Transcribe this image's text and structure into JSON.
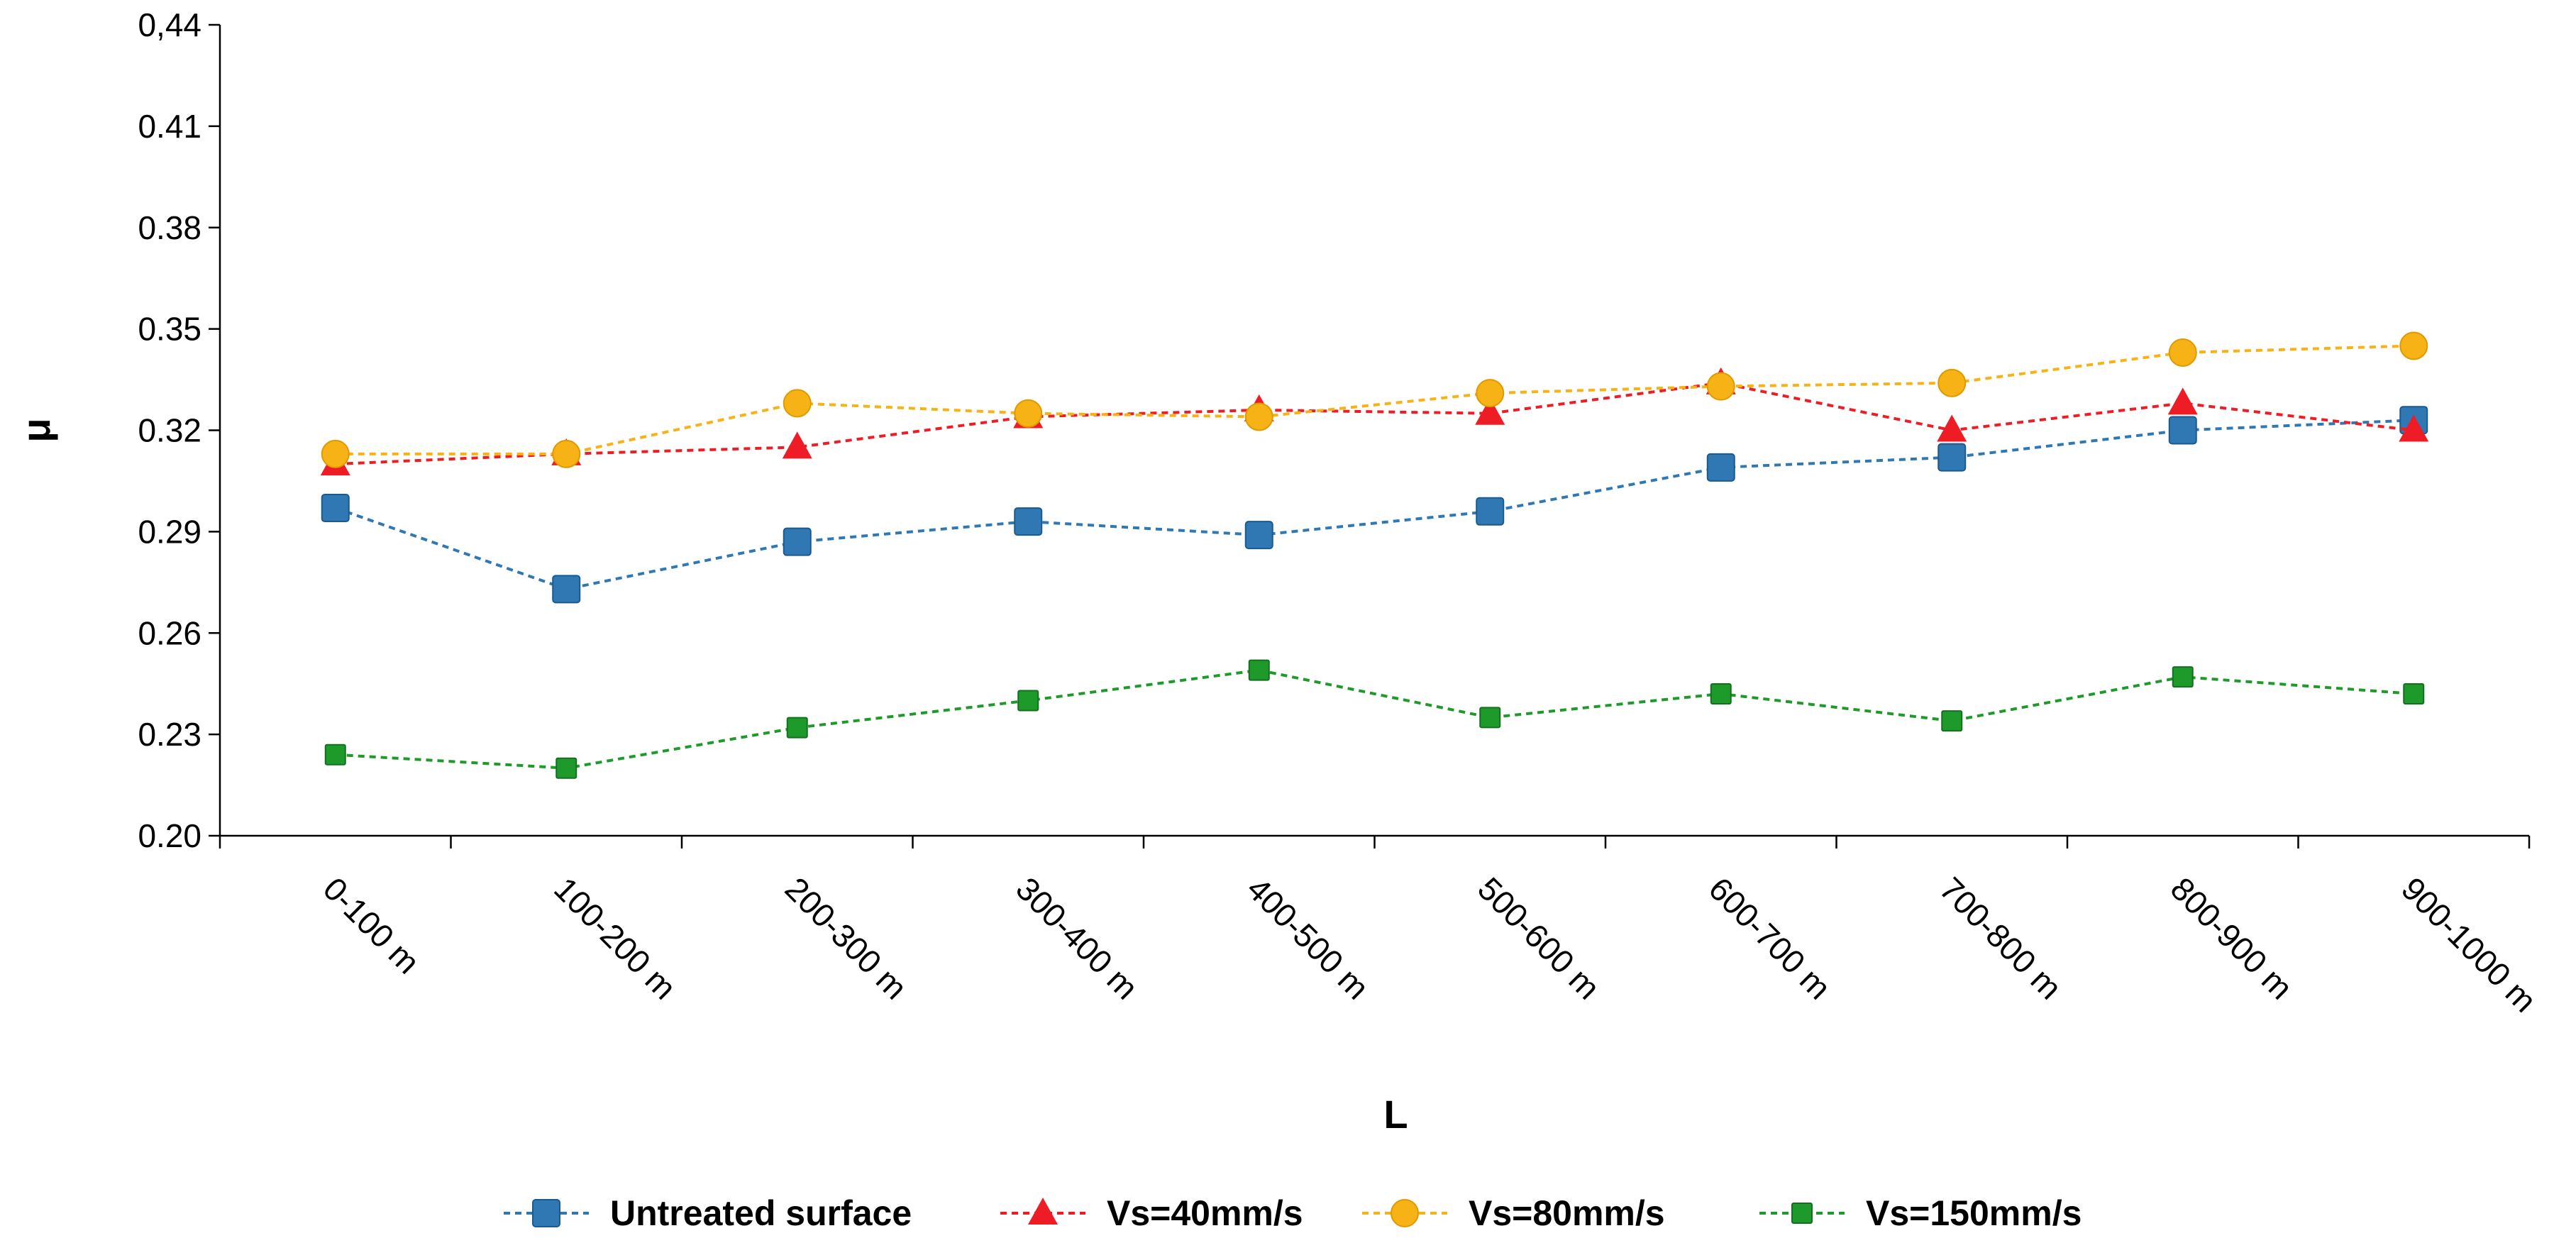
{
  "chart_data": {
    "type": "line",
    "title": "",
    "xlabel": "L",
    "ylabel": "μ",
    "ylim": [
      0.2,
      0.44
    ],
    "yticks": [
      "0.20",
      "0.23",
      "0.26",
      "0.29",
      "0.32",
      "0.35",
      "0.38",
      "0.41",
      "0,44"
    ],
    "ytick_values": [
      0.2,
      0.23,
      0.26,
      0.29,
      0.32,
      0.35,
      0.38,
      0.41,
      0.44
    ],
    "categories": [
      "0-100 m",
      "100-200 m",
      "200-300 m",
      "300-400 m",
      "400-500 m",
      "500-600 m",
      "600-700 m",
      "700-800 m",
      "800-900 m",
      "900-1000 m"
    ],
    "legend_position": "bottom",
    "grid": false,
    "series": [
      {
        "name": "Untreated surface",
        "color": "#2f78b4",
        "marker": "square-large",
        "values": [
          0.297,
          0.273,
          0.287,
          0.293,
          0.289,
          0.296,
          0.309,
          0.312,
          0.32,
          0.323
        ]
      },
      {
        "name": "Vs=40mm/s",
        "color": "#ee1c24",
        "marker": "triangle",
        "values": [
          0.31,
          0.313,
          0.315,
          0.324,
          0.326,
          0.325,
          0.334,
          0.32,
          0.328,
          0.32
        ]
      },
      {
        "name": "Vs=80mm/s",
        "color": "#f7b215",
        "marker": "circle",
        "values": [
          0.313,
          0.313,
          0.328,
          0.325,
          0.324,
          0.331,
          0.333,
          0.334,
          0.343,
          0.345
        ]
      },
      {
        "name": "Vs=150mm/s",
        "color": "#1e9a2a",
        "marker": "square-small",
        "values": [
          0.224,
          0.22,
          0.232,
          0.24,
          0.249,
          0.235,
          0.242,
          0.234,
          0.247,
          0.242
        ]
      }
    ]
  }
}
